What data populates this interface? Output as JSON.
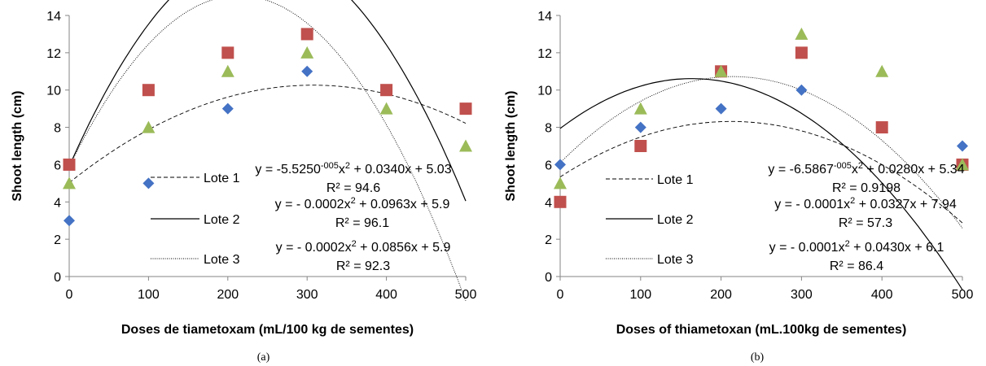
{
  "chart_data": [
    {
      "type": "scatter",
      "panel_label": "(a)",
      "xlabel": "Doses de tiametoxam (mL/100 kg de sementes)",
      "ylabel": "Shoot length (cm)",
      "xlim": [
        0,
        500
      ],
      "ylim": [
        0,
        14
      ],
      "x_ticks": [
        "0",
        "100",
        "200",
        "300",
        "400",
        "500"
      ],
      "y_ticks": [
        "0",
        "2",
        "4",
        "6",
        "8",
        "10",
        "12",
        "14"
      ],
      "grid": false,
      "x": [
        0,
        100,
        200,
        300,
        400,
        500
      ],
      "series": [
        {
          "name": "Lote 1",
          "marker": "diamond",
          "color": "#4472C4",
          "line_style": "dashed",
          "values": [
            3,
            5,
            9,
            11,
            10,
            9
          ],
          "fit": {
            "a": -5.525e-05,
            "b": 0.034,
            "c": 5.03
          },
          "equation": [
            "y = -5.5250",
            "-005",
            "x",
            "2",
            " + 0.0340x + 5.03"
          ],
          "r2": "R² = 94.6"
        },
        {
          "name": "Lote 2",
          "marker": "square",
          "color": "#C0504D",
          "line_style": "solid",
          "values": [
            6,
            10,
            12,
            13,
            10,
            9
          ],
          "fit": {
            "a": -0.0002,
            "b": 0.0963,
            "c": 5.9
          },
          "equation": [
            "y = - 0.0002x",
            "2",
            " + 0.0963x + 5.9"
          ],
          "r2": "R² = 96.1"
        },
        {
          "name": "Lote 3",
          "marker": "triangle",
          "color": "#9BBB59",
          "line_style": "dotted",
          "values": [
            5,
            8,
            11,
            12,
            9,
            7
          ],
          "fit": {
            "a": -0.0002,
            "b": 0.0856,
            "c": 5.9
          },
          "equation": [
            "y =  - 0.0002x",
            "2",
            " + 0.0856x + 5.9"
          ],
          "r2": "R² = 92.3"
        }
      ]
    },
    {
      "type": "scatter",
      "panel_label": "(b)",
      "xlabel": "Doses of thiametoxan (mL.100kg de sementes)",
      "ylabel": "Shoot length (cm)",
      "xlim": [
        0,
        500
      ],
      "ylim": [
        0,
        14
      ],
      "x_ticks": [
        "0",
        "100",
        "200",
        "300",
        "400",
        "500"
      ],
      "y_ticks": [
        "0",
        "2",
        "4",
        "6",
        "8",
        "10",
        "12",
        "14"
      ],
      "grid": false,
      "x": [
        0,
        100,
        200,
        300,
        400,
        500
      ],
      "series": [
        {
          "name": "Lote 1",
          "marker": "diamond",
          "color": "#4472C4",
          "line_style": "dashed",
          "values": [
            6,
            8,
            9,
            10,
            8,
            7
          ],
          "fit": {
            "a": -6.5867e-05,
            "b": 0.028,
            "c": 5.34
          },
          "equation": [
            "y =  -6.5867",
            "-005",
            "x",
            "2",
            " + 0.0280x + 5.34"
          ],
          "r2": "R² = 0.9198"
        },
        {
          "name": "Lote 2",
          "marker": "square",
          "color": "#C0504D",
          "line_style": "solid",
          "values": [
            4,
            7,
            11,
            12,
            8,
            6
          ],
          "fit": {
            "a": -0.0001,
            "b": 0.0327,
            "c": 7.94
          },
          "equation": [
            "y =  - 0.0001x",
            "2",
            " + 0.0327x + 7.94"
          ],
          "r2": "R² = 57.3"
        },
        {
          "name": "Lote 3",
          "marker": "triangle",
          "color": "#9BBB59",
          "line_style": "dotted",
          "values": [
            5,
            9,
            11,
            13,
            11,
            6
          ],
          "fit": {
            "a": -0.0001,
            "b": 0.043,
            "c": 6.1
          },
          "equation": [
            "y = - 0.0001x",
            "2",
            " + 0.0430x + 6.1"
          ],
          "r2": "R² = 86.4"
        }
      ]
    }
  ]
}
